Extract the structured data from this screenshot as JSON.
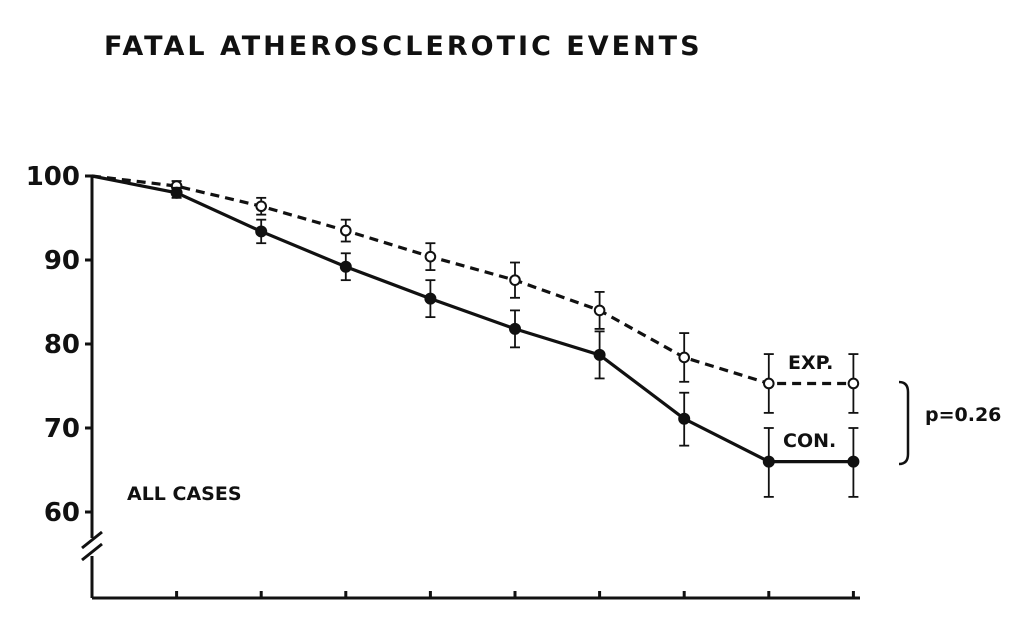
{
  "chart_data": {
    "type": "line",
    "title": "FATAL ATHEROSCLEROTIC EVENTS",
    "xlabel": "",
    "ylabel": "",
    "ylim": [
      55,
      100
    ],
    "y_ticks": [
      100,
      90,
      80,
      70,
      60
    ],
    "y_tick_labels": [
      "100",
      "90",
      "80",
      "70",
      "60"
    ],
    "y_axis_break": true,
    "x": [
      0,
      1,
      2,
      3,
      4,
      5,
      6,
      7,
      8,
      9
    ],
    "x_tick_labels": [],
    "grid": false,
    "series": [
      {
        "name": "EXP.",
        "style": "dashed",
        "marker": "open-circle",
        "values": [
          100,
          98.8,
          96.4,
          93.5,
          90.4,
          87.6,
          84.0,
          78.4,
          75.3,
          75.3
        ],
        "error_low": [
          null,
          98.2,
          95.4,
          92.2,
          88.8,
          85.5,
          81.8,
          75.5,
          71.8,
          71.8
        ],
        "error_high": [
          null,
          99.4,
          97.4,
          94.8,
          92.0,
          89.7,
          86.2,
          81.3,
          78.8,
          78.8
        ]
      },
      {
        "name": "CON.",
        "style": "solid",
        "marker": "filled-circle",
        "values": [
          100,
          98.0,
          93.4,
          89.2,
          85.4,
          81.8,
          78.7,
          71.1,
          66.0,
          66.0
        ],
        "error_low": [
          null,
          97.4,
          92.0,
          87.6,
          83.2,
          79.6,
          75.9,
          67.9,
          61.8,
          61.8
        ],
        "error_high": [
          null,
          98.6,
          94.8,
          90.8,
          87.6,
          84.0,
          81.5,
          74.2,
          70.0,
          70.0
        ]
      }
    ],
    "annotations": {
      "subset_label": "ALL CASES",
      "p_value": "p=0.26"
    }
  }
}
